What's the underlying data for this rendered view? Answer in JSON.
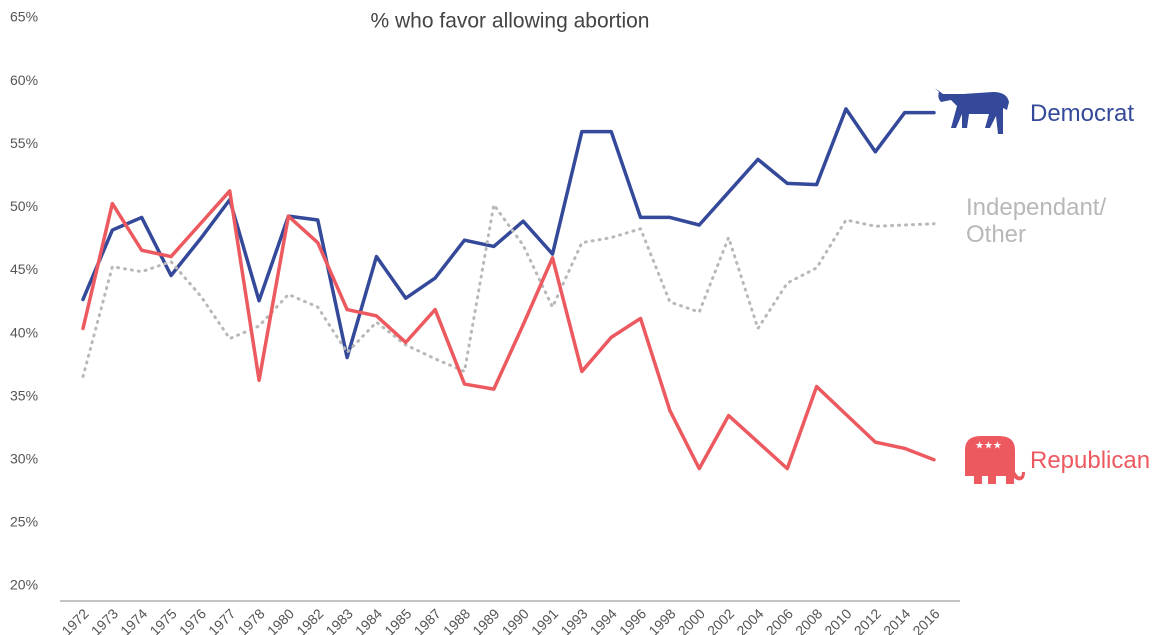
{
  "chart_data": {
    "type": "line",
    "title": "% who favor allowing abortion",
    "categories": [
      "1972",
      "1973",
      "1974",
      "1975",
      "1976",
      "1977",
      "1978",
      "1980",
      "1982",
      "1983",
      "1984",
      "1985",
      "1987",
      "1988",
      "1989",
      "1990",
      "1991",
      "1993",
      "1994",
      "1996",
      "1998",
      "2000",
      "2002",
      "2004",
      "2006",
      "2008",
      "2010",
      "2012",
      "2014",
      "2016"
    ],
    "series": [
      {
        "name": "Democrat",
        "color": "#34499a",
        "dash": false,
        "values": [
          42.7,
          48.2,
          49.2,
          44.6,
          47.5,
          50.6,
          42.6,
          49.3,
          49.0,
          38.1,
          46.1,
          42.8,
          44.4,
          47.4,
          46.9,
          48.9,
          46.3,
          56.0,
          56.0,
          49.2,
          49.2,
          48.6,
          51.2,
          53.8,
          51.9,
          51.8,
          57.8,
          54.4,
          57.5,
          57.5
        ]
      },
      {
        "name": "Independant/ Other",
        "color": "#b8b8b8",
        "dash": true,
        "values": [
          36.6,
          45.3,
          44.9,
          45.7,
          43.0,
          39.6,
          40.6,
          43.1,
          42.1,
          38.5,
          40.9,
          39.1,
          38.0,
          37.0,
          50.2,
          47.0,
          42.1,
          47.2,
          47.6,
          48.3,
          42.5,
          41.7,
          47.6,
          40.4,
          44.0,
          45.2,
          49.0,
          48.5,
          48.6,
          48.7
        ]
      },
      {
        "name": "Republican",
        "color": "#ec5a60",
        "dash": false,
        "values": [
          40.4,
          50.3,
          46.6,
          46.1,
          48.7,
          51.3,
          36.3,
          49.3,
          47.2,
          41.9,
          41.4,
          39.3,
          41.9,
          36.0,
          35.6,
          40.7,
          46.0,
          37.0,
          39.7,
          41.2,
          33.9,
          29.3,
          33.5,
          31.4,
          29.3,
          35.8,
          33.6,
          31.4,
          30.9,
          30.0
        ]
      }
    ],
    "ylim": [
      20,
      65
    ],
    "yticks": [
      {
        "value": 20,
        "label": "20%"
      },
      {
        "value": 25,
        "label": "25%"
      },
      {
        "value": 30,
        "label": "30%"
      },
      {
        "value": 35,
        "label": "35%"
      },
      {
        "value": 40,
        "label": "40%"
      },
      {
        "value": 45,
        "label": "45%"
      },
      {
        "value": 50,
        "label": "50%"
      },
      {
        "value": 55,
        "label": "55%"
      },
      {
        "value": 60,
        "label": "60%"
      },
      {
        "value": 65,
        "label": "65%"
      }
    ],
    "grid": false
  }
}
